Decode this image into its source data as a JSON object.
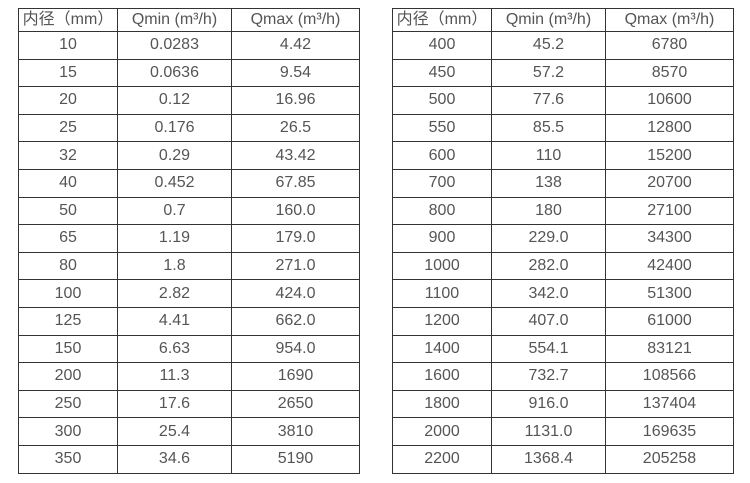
{
  "style": {
    "border_color": "#333333",
    "text_color": "#555555",
    "background_color": "#ffffff"
  },
  "chart_data": [
    {
      "type": "table",
      "title": "",
      "columns": [
        "内径（mm）",
        "Qmin (m³/h)",
        "Qmax (m³/h)"
      ],
      "rows": [
        [
          "10",
          "0.0283",
          "4.42"
        ],
        [
          "15",
          "0.0636",
          "9.54"
        ],
        [
          "20",
          "0.12",
          "16.96"
        ],
        [
          "25",
          "0.176",
          "26.5"
        ],
        [
          "32",
          "0.29",
          "43.42"
        ],
        [
          "40",
          "0.452",
          "67.85"
        ],
        [
          "50",
          "0.7",
          "160.0"
        ],
        [
          "65",
          "1.19",
          "179.0"
        ],
        [
          "80",
          "1.8",
          "271.0"
        ],
        [
          "100",
          "2.82",
          "424.0"
        ],
        [
          "125",
          "4.41",
          "662.0"
        ],
        [
          "150",
          "6.63",
          "954.0"
        ],
        [
          "200",
          "11.3",
          "1690"
        ],
        [
          "250",
          "17.6",
          "2650"
        ],
        [
          "300",
          "25.4",
          "3810"
        ],
        [
          "350",
          "34.6",
          "5190"
        ]
      ]
    },
    {
      "type": "table",
      "title": "",
      "columns": [
        "内径（mm）",
        "Qmin (m³/h)",
        "Qmax (m³/h)"
      ],
      "rows": [
        [
          "400",
          "45.2",
          "6780"
        ],
        [
          "450",
          "57.2",
          "8570"
        ],
        [
          "500",
          "77.6",
          "10600"
        ],
        [
          "550",
          "85.5",
          "12800"
        ],
        [
          "600",
          "110",
          "15200"
        ],
        [
          "700",
          "138",
          "20700"
        ],
        [
          "800",
          "180",
          "27100"
        ],
        [
          "900",
          "229.0",
          "34300"
        ],
        [
          "1000",
          "282.0",
          "42400"
        ],
        [
          "1100",
          "342.0",
          "51300"
        ],
        [
          "1200",
          "407.0",
          "61000"
        ],
        [
          "1400",
          "554.1",
          "83121"
        ],
        [
          "1600",
          "732.7",
          "108566"
        ],
        [
          "1800",
          "916.0",
          "137404"
        ],
        [
          "2000",
          "1131.0",
          "169635"
        ],
        [
          "2200",
          "1368.4",
          "205258"
        ]
      ]
    }
  ]
}
